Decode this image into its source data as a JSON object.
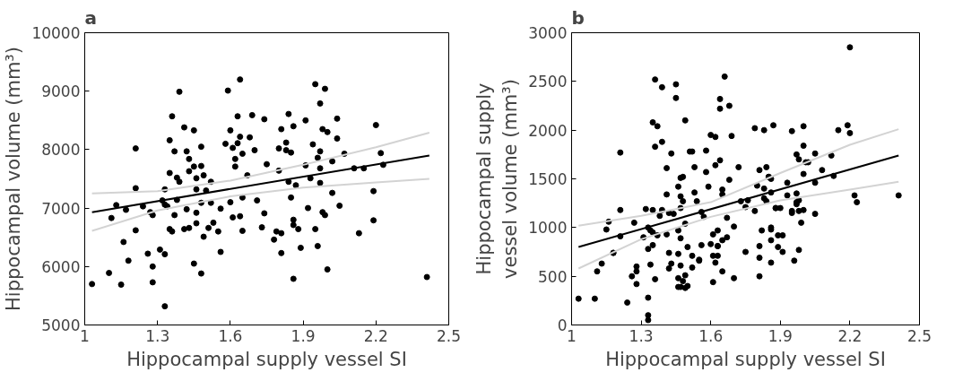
{
  "chart_data": [
    {
      "type": "scatter",
      "title": "a",
      "xlabel": "Hippocampal supply vessel SI",
      "ylabel": "Hippocampal volume (mm³)",
      "xlim": [
        1,
        2.5
      ],
      "xticks": [
        1,
        1.3,
        1.6,
        1.9,
        2.2,
        2.5
      ],
      "ylim": [
        5000,
        10000
      ],
      "yticks": [
        5000,
        6000,
        7000,
        8000,
        9000,
        10000
      ],
      "grid": false,
      "series": [
        {
          "marker": "circle",
          "color": "#000000",
          "x": [
            1.03,
            1.1,
            1.11,
            1.13,
            1.15,
            1.16,
            1.17,
            1.18,
            1.21,
            1.21,
            1.21,
            1.24,
            1.26,
            1.27,
            1.28,
            1.28,
            1.28,
            1.31,
            1.32,
            1.33,
            1.33,
            1.33,
            1.33,
            1.34,
            1.35,
            1.35,
            1.35,
            1.36,
            1.36,
            1.37,
            1.37,
            1.38,
            1.38,
            1.39,
            1.39,
            1.41,
            1.41,
            1.42,
            1.42,
            1.43,
            1.43,
            1.43,
            1.45,
            1.46,
            1.46,
            1.45,
            1.45,
            1.46,
            1.46,
            1.48,
            1.48,
            1.48,
            1.48,
            1.49,
            1.49,
            1.5,
            1.51,
            1.52,
            1.52,
            1.53,
            1.55,
            1.56,
            1.56,
            1.58,
            1.59,
            1.6,
            1.6,
            1.61,
            1.61,
            1.62,
            1.62,
            1.63,
            1.63,
            1.64,
            1.64,
            1.64,
            1.65,
            1.65,
            1.65,
            1.67,
            1.68,
            1.69,
            1.7,
            1.71,
            1.73,
            1.74,
            1.74,
            1.75,
            1.78,
            1.79,
            1.8,
            1.8,
            1.81,
            1.81,
            1.81,
            1.83,
            1.83,
            1.84,
            1.84,
            1.85,
            1.85,
            1.86,
            1.86,
            1.86,
            1.86,
            1.87,
            1.88,
            1.89,
            1.91,
            1.91,
            1.92,
            1.93,
            1.94,
            1.95,
            1.95,
            1.96,
            1.96,
            1.97,
            1.97,
            1.97,
            1.97,
            1.98,
            1.98,
            1.99,
            1.99,
            2.0,
            2.0,
            2.02,
            2.02,
            2.04,
            2.04,
            2.05,
            2.07,
            2.11,
            2.13,
            2.15,
            2.19,
            2.19,
            2.2,
            2.22,
            2.23,
            2.41
          ],
          "values": [
            5700,
            5890,
            6830,
            7050,
            5690,
            6420,
            6970,
            6100,
            7340,
            8020,
            6620,
            7030,
            6220,
            6930,
            6000,
            5730,
            6880,
            6290,
            7130,
            6210,
            5320,
            7320,
            7060,
            7030,
            8160,
            7600,
            6640,
            8570,
            6600,
            7970,
            6880,
            7140,
            7520,
            7450,
            8990,
            8380,
            6640,
            7970,
            6980,
            7630,
            6660,
            7840,
            8330,
            6740,
            6920,
            6050,
            7710,
            7510,
            7320,
            7720,
            7090,
            8050,
            5880,
            7560,
            6510,
            7300,
            6660,
            7450,
            7090,
            6750,
            6600,
            6250,
            6990,
            8100,
            9010,
            7100,
            8330,
            8030,
            6840,
            7710,
            7840,
            8110,
            8570,
            9200,
            6860,
            8220,
            6610,
            7930,
            7180,
            7560,
            8210,
            8590,
            7990,
            7130,
            6670,
            8520,
            6910,
            7750,
            6460,
            6600,
            7640,
            8020,
            6230,
            8350,
            6570,
            8120,
            7990,
            7450,
            8610,
            7180,
            7950,
            6800,
            6710,
            5790,
            8400,
            7390,
            6640,
            6320,
            8500,
            7730,
            7000,
            7510,
            8090,
            6640,
            9120,
            6350,
            7860,
            7430,
            7680,
            8790,
            7970,
            8350,
            6930,
            9040,
            6880,
            5950,
            8300,
            7800,
            7260,
            8530,
            8190,
            7040,
            7930,
            7680,
            6570,
            7680,
            6790,
            7290,
            8420,
            7940,
            7740,
            5820
          ]
        },
        {
          "type": "line",
          "marker": "none",
          "color": "#d3d3d3",
          "x": [
            1.03,
            1.3,
            1.6,
            1.9,
            2.2,
            2.42
          ],
          "values": [
            7250,
            7290,
            7470,
            7740,
            8040,
            8290
          ]
        },
        {
          "type": "line",
          "marker": "none",
          "color": "#d3d3d3",
          "x": [
            1.03,
            1.3,
            1.6,
            1.9,
            2.2,
            2.42
          ],
          "values": [
            6610,
            6960,
            7200,
            7350,
            7440,
            7500
          ]
        },
        {
          "type": "line",
          "marker": "none",
          "color": "#000000",
          "x": [
            1.03,
            2.42
          ],
          "values": [
            6930,
            7900
          ]
        }
      ]
    },
    {
      "type": "scatter",
      "title": "b",
      "xlabel": "Hippocampal supply vessel SI",
      "ylabel": "Hippocampal supply\nvessel volume (mm³)",
      "xlim": [
        1,
        2.5
      ],
      "xticks": [
        1,
        1.3,
        1.6,
        1.9,
        2.2,
        2.5
      ],
      "ylim": [
        0,
        3000
      ],
      "yticks": [
        0,
        500,
        1000,
        1500,
        2000,
        2500,
        3000
      ],
      "grid": false,
      "series": [
        {
          "marker": "circle",
          "color": "#000000",
          "x": [
            1.03,
            1.1,
            1.11,
            1.13,
            1.15,
            1.16,
            1.18,
            1.18,
            1.21,
            1.21,
            1.21,
            1.24,
            1.26,
            1.27,
            1.28,
            1.28,
            1.28,
            1.31,
            1.32,
            1.33,
            1.33,
            1.33,
            1.33,
            1.33,
            1.34,
            1.34,
            1.35,
            1.35,
            1.35,
            1.35,
            1.36,
            1.36,
            1.36,
            1.37,
            1.37,
            1.38,
            1.39,
            1.39,
            1.39,
            1.41,
            1.41,
            1.41,
            1.42,
            1.42,
            1.42,
            1.43,
            1.43,
            1.44,
            1.45,
            1.45,
            1.46,
            1.46,
            1.46,
            1.46,
            1.46,
            1.47,
            1.47,
            1.47,
            1.47,
            1.47,
            1.47,
            1.48,
            1.48,
            1.48,
            1.49,
            1.49,
            1.49,
            1.49,
            1.5,
            1.5,
            1.51,
            1.52,
            1.52,
            1.52,
            1.53,
            1.53,
            1.54,
            1.55,
            1.55,
            1.56,
            1.56,
            1.57,
            1.58,
            1.58,
            1.59,
            1.6,
            1.6,
            1.61,
            1.61,
            1.61,
            1.62,
            1.62,
            1.62,
            1.63,
            1.63,
            1.63,
            1.63,
            1.64,
            1.64,
            1.64,
            1.65,
            1.65,
            1.65,
            1.65,
            1.66,
            1.67,
            1.67,
            1.68,
            1.68,
            1.69,
            1.7,
            1.7,
            1.72,
            1.73,
            1.75,
            1.75,
            1.76,
            1.79,
            1.79,
            1.8,
            1.81,
            1.81,
            1.81,
            1.81,
            1.82,
            1.83,
            1.83,
            1.83,
            1.84,
            1.84,
            1.85,
            1.85,
            1.86,
            1.86,
            1.86,
            1.86,
            1.86,
            1.86,
            1.87,
            1.88,
            1.88,
            1.89,
            1.89,
            1.9,
            1.91,
            1.91,
            1.93,
            1.93,
            1.95,
            1.95,
            1.95,
            1.96,
            1.97,
            1.97,
            1.97,
            1.97,
            1.98,
            1.98,
            1.98,
            1.98,
            1.99,
            2.0,
            2.0,
            2.0,
            2.0,
            2.01,
            2.02,
            2.05,
            2.05,
            2.05,
            2.08,
            2.12,
            2.13,
            2.15,
            2.19,
            2.2,
            2.2,
            2.22,
            2.23,
            2.41
          ],
          "values": [
            270,
            270,
            550,
            630,
            980,
            1060,
            740,
            740,
            1770,
            1180,
            910,
            230,
            500,
            1050,
            550,
            600,
            420,
            900,
            1190,
            780,
            1000,
            280,
            50,
            100,
            970,
            620,
            2080,
            950,
            1180,
            820,
            1830,
            2520,
            470,
            2040,
            920,
            1120,
            1880,
            1180,
            2440,
            1610,
            1340,
            930,
            740,
            580,
            1150,
            1760,
            630,
            1140,
            2330,
            2470,
            390,
            480,
            730,
            1420,
            970,
            1510,
            1320,
            1200,
            890,
            610,
            390,
            450,
            1270,
            1520,
            1040,
            510,
            2100,
            380,
            800,
            400,
            1780,
            1780,
            590,
            710,
            1620,
            1360,
            1270,
            670,
            660,
            820,
            1160,
            1110,
            1790,
            1570,
            1420,
            830,
            1950,
            930,
            710,
            440,
            1930,
            1640,
            640,
            710,
            970,
            810,
            810,
            2320,
            2220,
            1690,
            1390,
            1340,
            550,
            870,
            2550,
            1100,
            900,
            1490,
            2250,
            1940,
            480,
            1010,
            1620,
            1270,
            1210,
            750,
            1280,
            1170,
            2020,
            1430,
            690,
            500,
            810,
            1590,
            970,
            2000,
            1400,
            1300,
            1620,
            1270,
            1520,
            1520,
            1360,
            870,
            640,
            1000,
            980,
            1500,
            2050,
            1200,
            1200,
            800,
            920,
            1200,
            920,
            750,
            1460,
            1330,
            1150,
            1170,
            1990,
            660,
            1750,
            1260,
            1350,
            1240,
            1280,
            1170,
            1700,
            770,
            1050,
            1180,
            1550,
            1840,
            2040,
            1670,
            1670,
            1760,
            1140,
            1460,
            1590,
            1740,
            1530,
            2000,
            2050,
            2850,
            1970,
            1330,
            1260,
            1330
          ]
        },
        {
          "type": "line",
          "marker": "none",
          "color": "#d3d3d3",
          "x": [
            1.03,
            1.3,
            1.6,
            1.9,
            2.2,
            2.41
          ],
          "values": [
            1020,
            1120,
            1260,
            1560,
            1850,
            2010
          ]
        },
        {
          "type": "line",
          "marker": "none",
          "color": "#d3d3d3",
          "x": [
            1.03,
            1.3,
            1.6,
            1.9,
            2.2,
            2.41
          ],
          "values": [
            580,
            880,
            1110,
            1280,
            1390,
            1470
          ]
        },
        {
          "type": "line",
          "marker": "none",
          "color": "#000000",
          "x": [
            1.03,
            2.41
          ],
          "values": [
            800,
            1740
          ]
        }
      ]
    }
  ]
}
